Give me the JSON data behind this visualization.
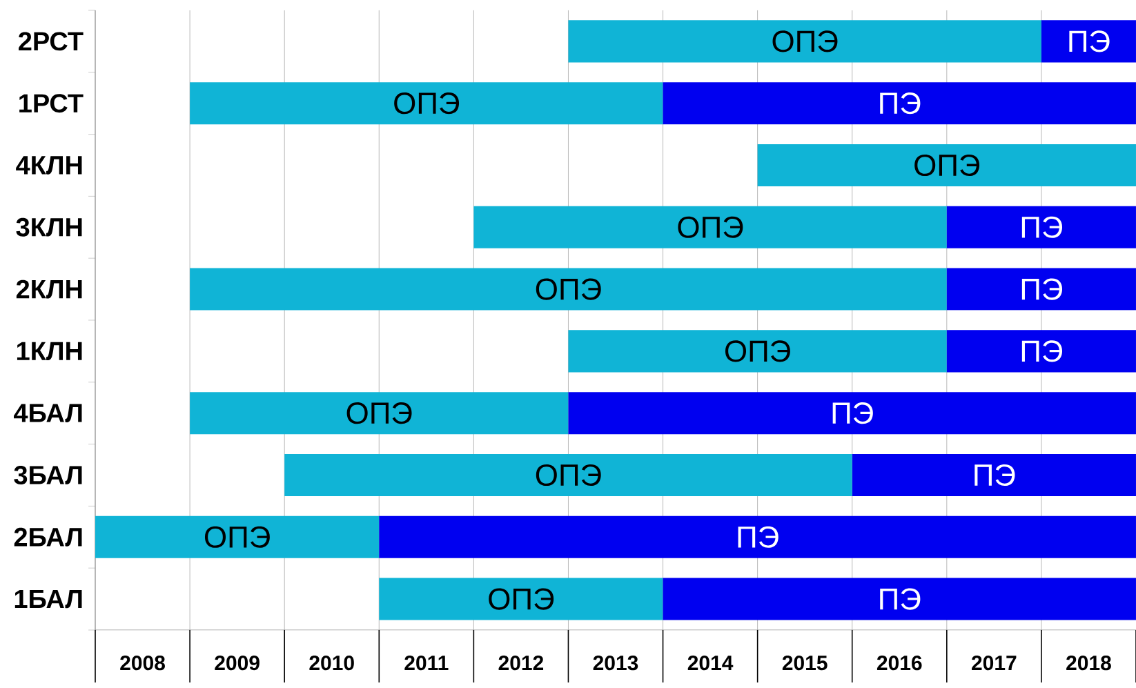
{
  "chart_data": {
    "type": "bar",
    "orientation": "horizontal",
    "categories": [
      "2РСТ",
      "1РСТ",
      "4КЛН",
      "3КЛН",
      "2КЛН",
      "1КЛН",
      "4БАЛ",
      "3БАЛ",
      "2БАЛ",
      "1БАЛ"
    ],
    "series": [
      {
        "color": "#10b4d6",
        "base": [
          2013,
          2009,
          2015,
          2012,
          2009,
          2013,
          2009,
          2010,
          2008,
          2011
        ],
        "values": [
          5,
          5,
          4,
          5,
          8,
          4,
          4,
          6,
          3,
          3
        ],
        "value_labels": [
          "ОПЭ",
          "ОПЭ",
          "ОПЭ",
          "ОПЭ",
          "ОПЭ",
          "ОПЭ",
          "ОПЭ",
          "ОПЭ",
          "ОПЭ",
          "ОПЭ"
        ]
      },
      {
        "color": "#0000f0",
        "base": [
          2018,
          2014,
          null,
          2017,
          2017,
          2017,
          2013,
          2016,
          2011,
          2014
        ],
        "values": [
          1,
          5,
          null,
          2,
          2,
          2,
          6,
          3,
          8,
          5
        ],
        "value_labels": [
          "ПЭ",
          "ПЭ",
          null,
          "ПЭ",
          "ПЭ",
          "ПЭ",
          "ПЭ",
          "ПЭ",
          "ПЭ",
          "ПЭ"
        ]
      }
    ],
    "xlim": [
      2008,
      2019
    ],
    "xticks": [
      {
        "value": 2008,
        "label": null
      },
      {
        "value": 2008.5,
        "label": "2008"
      },
      {
        "value": 2009,
        "label": null
      },
      {
        "value": 2009.5,
        "label": "2009"
      },
      {
        "value": 2010,
        "label": null
      },
      {
        "value": 2010.5,
        "label": "2010"
      },
      {
        "value": 2011,
        "label": null
      },
      {
        "value": 2011.5,
        "label": "2011"
      },
      {
        "value": 2012,
        "label": null
      },
      {
        "value": 2012.5,
        "label": "2012"
      },
      {
        "value": 2013,
        "label": null
      },
      {
        "value": 2013.5,
        "label": "2013"
      },
      {
        "value": 2014,
        "label": null
      },
      {
        "value": 2014.5,
        "label": "2014"
      },
      {
        "value": 2015,
        "label": null
      },
      {
        "value": 2015.5,
        "label": "2015"
      },
      {
        "value": 2016,
        "label": null
      },
      {
        "value": 2016.5,
        "label": "2016"
      },
      {
        "value": 2017,
        "label": null
      },
      {
        "value": 2017.5,
        "label": "2017"
      },
      {
        "value": 2018,
        "label": null
      },
      {
        "value": 2018.5,
        "label": "2018"
      }
    ],
    "grid": "x"
  }
}
